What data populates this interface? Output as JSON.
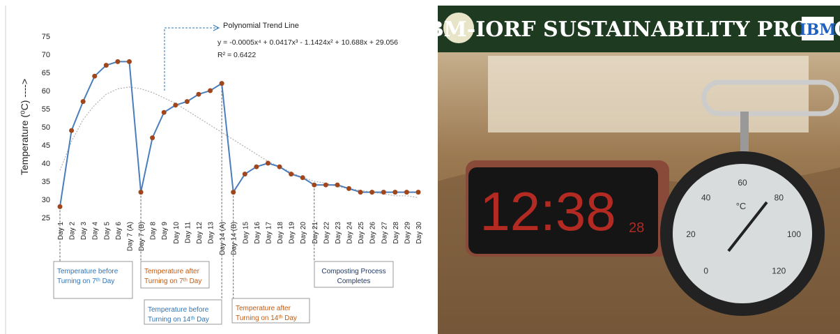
{
  "chart_data": {
    "type": "line",
    "y_label": "Temperature (⁰C) ---->",
    "categories": [
      "Day 1",
      "Day 2",
      "Day 3",
      "Day 4",
      "Day 5",
      "Day 6",
      "Day 7 (A)",
      "Day 7 (B)",
      "Day 8",
      "Day 9",
      "Day 10",
      "Day 11",
      "Day 12",
      "Day 13",
      "Day 14 (A)",
      "Day 14 (B)",
      "Day 15",
      "Day 16",
      "Day 17",
      "Day 18",
      "Day 19",
      "Day 20",
      "Day 21",
      "Day 22",
      "Day 23",
      "Day 24",
      "Day 25",
      "Day 26",
      "Day 27",
      "Day 28",
      "Day 29",
      "Day 30"
    ],
    "values": [
      28,
      49,
      57,
      64,
      67,
      68,
      68,
      32,
      47,
      54,
      56,
      57,
      59,
      60,
      62,
      32,
      37,
      39,
      40,
      39,
      37,
      36,
      34,
      34,
      34,
      33,
      32,
      32,
      32,
      32,
      32,
      32
    ],
    "color": "#4a7ebb",
    "marker_color": "#a0461c",
    "trend": {
      "label": "Polynomial Trend Line",
      "equation": "y = -0.0005x⁴ + 0.0417x³ - 1.1424x² + 10.688x + 29.056",
      "r2": "R² = 0.6422",
      "color": "#b0b0b0",
      "values": [
        38,
        46,
        52,
        56,
        59,
        60.5,
        61,
        60.5,
        59.5,
        58,
        56.5,
        54.5,
        52.5,
        50.5,
        48.5,
        46.5,
        44.5,
        42.5,
        40.5,
        39,
        37.5,
        36,
        35,
        34.5,
        33.5,
        33,
        32.5,
        32,
        31.5,
        31,
        31,
        30.5
      ]
    },
    "ylim": [
      25,
      75
    ],
    "yticks": [
      25,
      30,
      35,
      40,
      45,
      50,
      55,
      60,
      65,
      70,
      75
    ],
    "grid": false,
    "annotations": [
      {
        "lines": [
          "Temperature before",
          "Turning on 7ᵗʰ Day"
        ],
        "color": "#2e75b6"
      },
      {
        "lines": [
          "Temperature after",
          "Turning on 7ᵗʰ Day"
        ],
        "color": "#c55a11"
      },
      {
        "lines": [
          "Temperature before",
          "Turning on 14ᵗʰ Day"
        ],
        "color": "#2e75b6"
      },
      {
        "lines": [
          "Temperature after",
          "Turning on 14ᵗʰ Day"
        ],
        "color": "#c55a11"
      },
      {
        "lines": [
          "Composting Process",
          "Completes"
        ],
        "color": "#1f3864"
      }
    ]
  },
  "photo": {
    "title": "IBM-IORF SUSTAINABILITY PROJECT",
    "logo": "IBM",
    "clock_time": "12:38",
    "clock_seconds": "28",
    "dial_unit": "°C",
    "dial_labels": [
      0,
      20,
      40,
      60,
      80,
      100,
      120
    ]
  }
}
